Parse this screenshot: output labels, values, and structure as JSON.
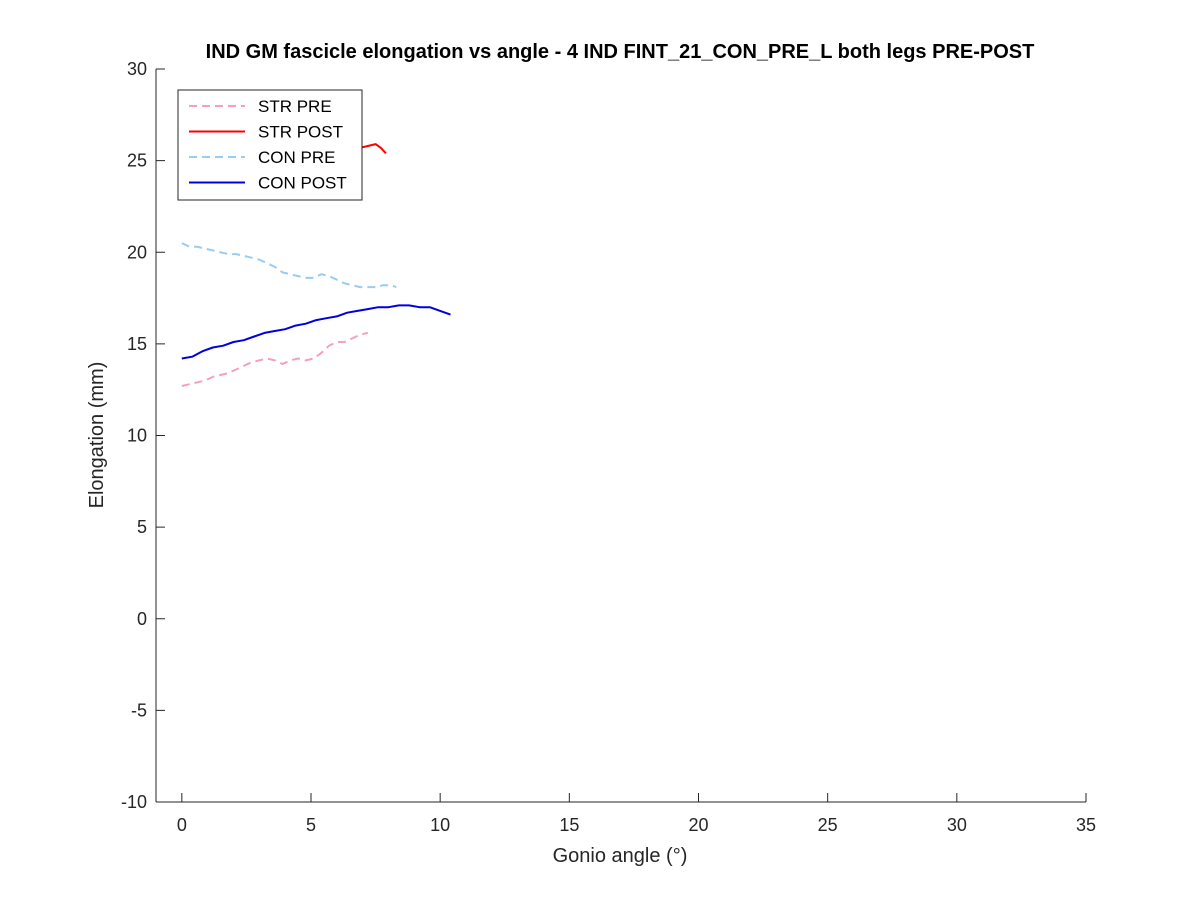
{
  "chart_data": {
    "type": "line",
    "title": "IND GM fascicle elongation vs angle - 4 IND FINT_21_CON_PRE_L both legs PRE-POST",
    "xlabel": "Gonio angle (°)",
    "ylabel": "Elongation (mm)",
    "xlim": [
      -1,
      35
    ],
    "ylim": [
      -10,
      30
    ],
    "xticks": [
      0,
      5,
      10,
      15,
      20,
      25,
      30,
      35
    ],
    "yticks": [
      -10,
      -5,
      0,
      5,
      10,
      15,
      20,
      25,
      30
    ],
    "xtick_labels": [
      "0",
      "5",
      "10",
      "15",
      "20",
      "25",
      "30",
      "35"
    ],
    "ytick_labels": [
      "-10",
      "-5",
      "0",
      "5",
      "10",
      "15",
      "20",
      "25",
      "30"
    ],
    "grid": false,
    "legend_position": "top-left",
    "series": [
      {
        "name": "STR PRE",
        "color": "#f4a0c0",
        "dash": "dashed",
        "x": [
          0,
          0.3,
          0.6,
          0.9,
          1.2,
          1.5,
          1.8,
          2.1,
          2.4,
          2.7,
          3.0,
          3.3,
          3.6,
          3.9,
          4.2,
          4.5,
          4.8,
          5.1,
          5.4,
          5.7,
          6.0,
          6.3,
          6.6,
          6.9,
          7.2
        ],
        "y": [
          12.7,
          12.8,
          12.9,
          13.0,
          13.2,
          13.3,
          13.4,
          13.6,
          13.8,
          14.0,
          14.1,
          14.2,
          14.1,
          13.9,
          14.1,
          14.2,
          14.1,
          14.2,
          14.5,
          14.9,
          15.1,
          15.1,
          15.3,
          15.5,
          15.6
        ]
      },
      {
        "name": "STR POST",
        "color": "#ff0000",
        "dash": "solid",
        "x": [
          6.6,
          6.9,
          7.2,
          7.5,
          7.7,
          7.9
        ],
        "y": [
          25.6,
          25.7,
          25.8,
          25.9,
          25.7,
          25.4
        ]
      },
      {
        "name": "CON PRE",
        "color": "#99ccf0",
        "dash": "dashed",
        "x": [
          0,
          0.3,
          0.6,
          0.9,
          1.2,
          1.5,
          1.8,
          2.1,
          2.4,
          2.7,
          3.0,
          3.3,
          3.6,
          3.9,
          4.2,
          4.5,
          4.8,
          5.1,
          5.4,
          5.7,
          6.0,
          6.3,
          6.6,
          6.9,
          7.2,
          7.5,
          7.8,
          8.1,
          8.3
        ],
        "y": [
          20.5,
          20.3,
          20.3,
          20.2,
          20.1,
          20.0,
          19.9,
          19.9,
          19.8,
          19.7,
          19.6,
          19.4,
          19.2,
          18.9,
          18.8,
          18.7,
          18.6,
          18.6,
          18.8,
          18.7,
          18.5,
          18.3,
          18.2,
          18.1,
          18.1,
          18.1,
          18.2,
          18.2,
          18.1
        ]
      },
      {
        "name": "CON POST",
        "color": "#0000dd",
        "dash": "solid",
        "x": [
          0,
          0.4,
          0.8,
          1.2,
          1.6,
          2.0,
          2.4,
          2.8,
          3.2,
          3.6,
          4.0,
          4.4,
          4.8,
          5.2,
          5.6,
          6.0,
          6.4,
          6.8,
          7.2,
          7.6,
          8.0,
          8.4,
          8.8,
          9.2,
          9.6,
          10.0,
          10.4
        ],
        "y": [
          14.2,
          14.3,
          14.6,
          14.8,
          14.9,
          15.1,
          15.2,
          15.4,
          15.6,
          15.7,
          15.8,
          16.0,
          16.1,
          16.3,
          16.4,
          16.5,
          16.7,
          16.8,
          16.9,
          17.0,
          17.0,
          17.1,
          17.1,
          17.0,
          17.0,
          16.8,
          16.6
        ]
      }
    ]
  }
}
